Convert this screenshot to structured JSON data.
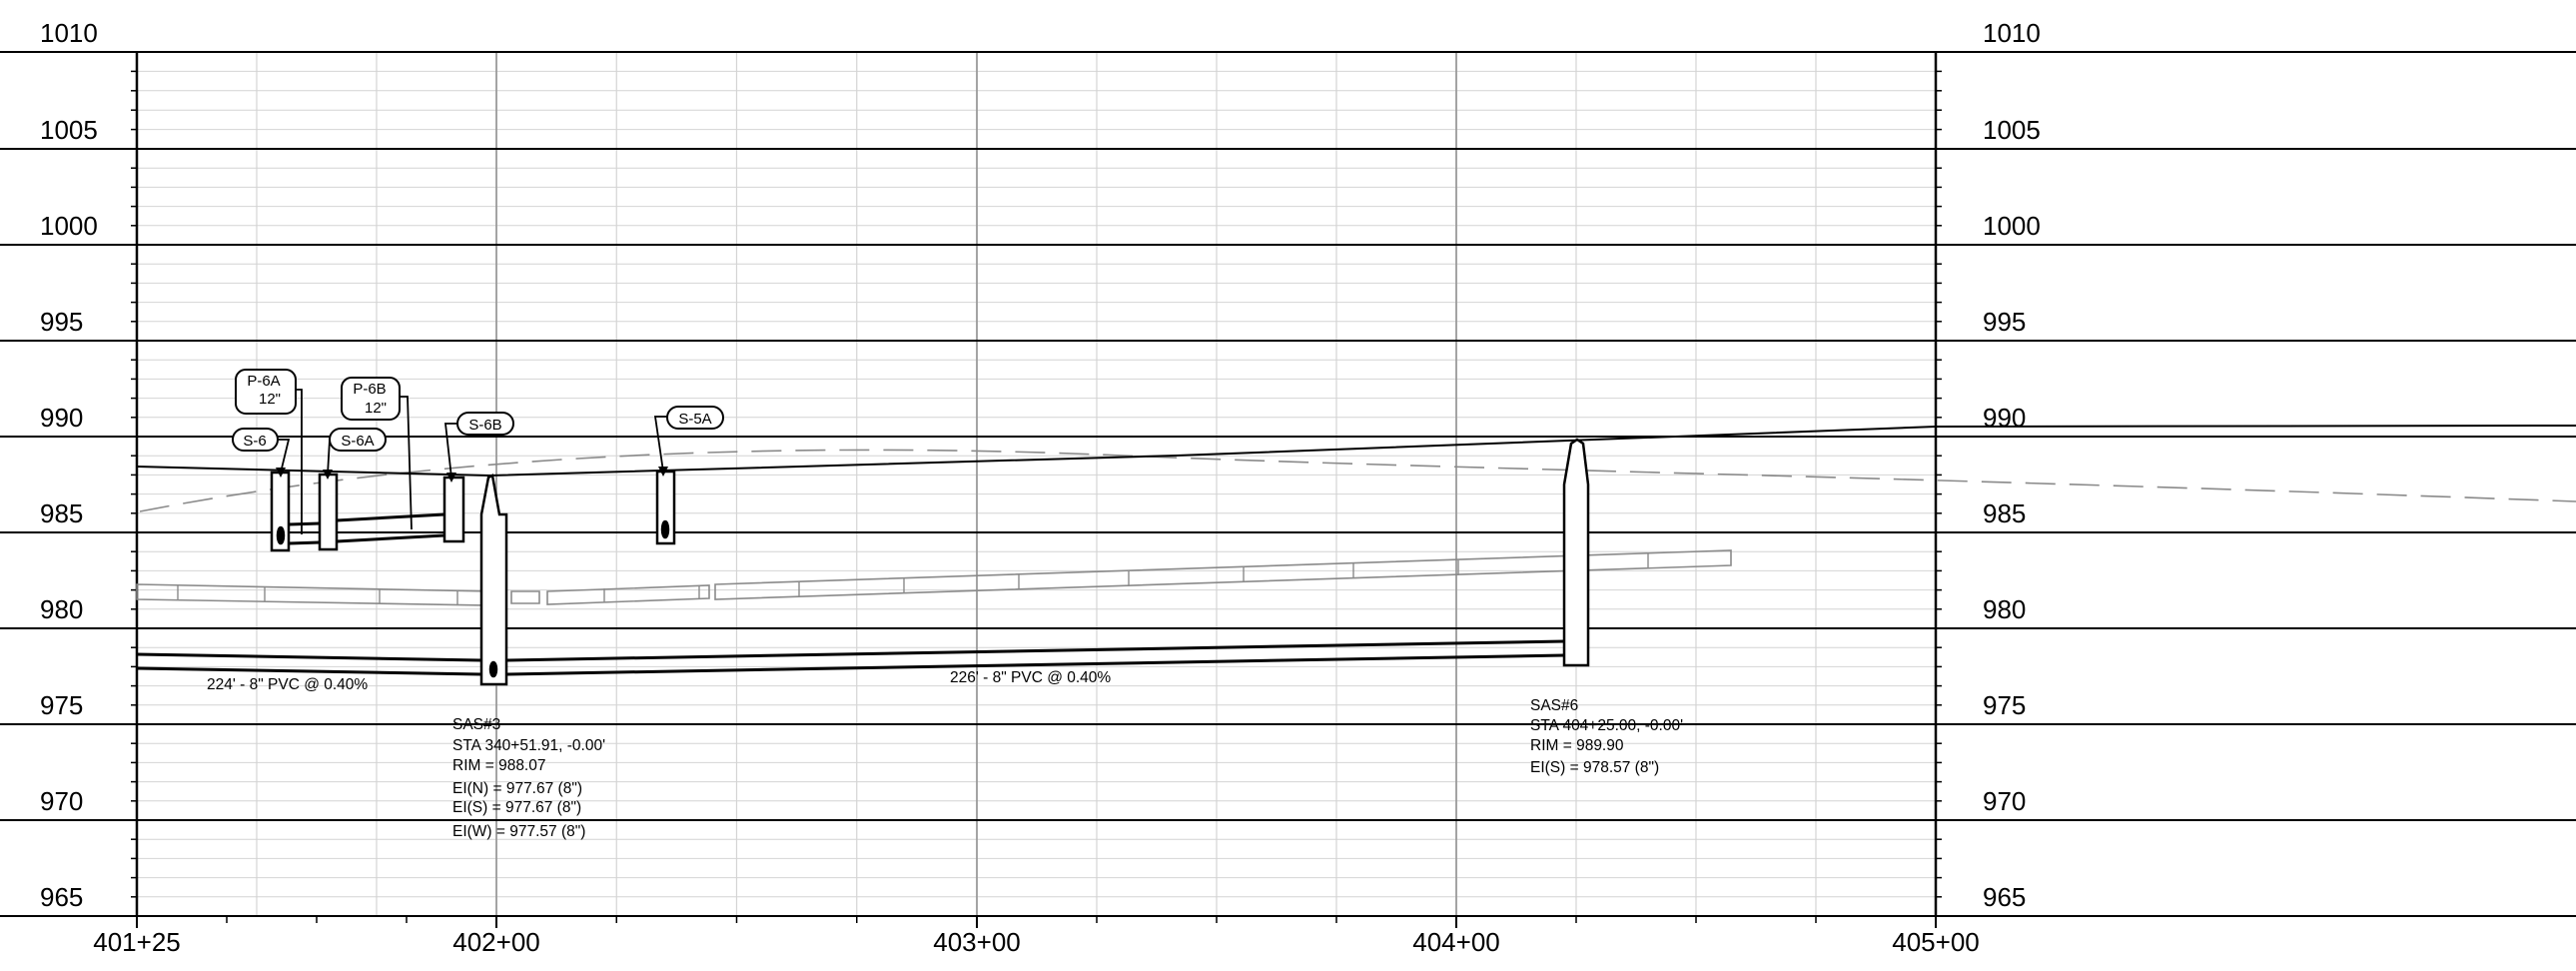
{
  "elevation_labels": [
    "1010",
    "1005",
    "1000",
    "995",
    "990",
    "985",
    "980",
    "975",
    "970",
    "965"
  ],
  "station_labels": [
    "401+25",
    "402+00",
    "403+00",
    "404+00",
    "405+00"
  ],
  "pipe_labels": [
    "224' - 8\" PVC @ 0.40%",
    "226' - 8\" PVC @ 0.40%"
  ],
  "tags": {
    "p6a": [
      "P-6A",
      "12\""
    ],
    "p6b": [
      "P-6B",
      "12\""
    ],
    "s6": "S-6",
    "s6a": "S-6A",
    "s6b": "S-6B",
    "s5a": "S-5A"
  },
  "structures": {
    "sas3": [
      "SAS#3",
      "STA 340+51.91, -0.00'",
      "RIM = 988.07",
      "EI(N) = 977.67 (8\")",
      "EI(S) = 977.67 (8\")",
      "EI(W) = 977.57 (8\")"
    ],
    "sas6": [
      "SAS#6",
      "STA 404+25.00, -0.00'",
      "RIM = 989.90",
      "EI(S) = 978.57 (8\")"
    ]
  },
  "colors": {
    "line": "#000000",
    "grid_major": "#9a9a9a",
    "grid_minor": "#d4d4d4",
    "existing_ground": "#8a8a8a"
  }
}
